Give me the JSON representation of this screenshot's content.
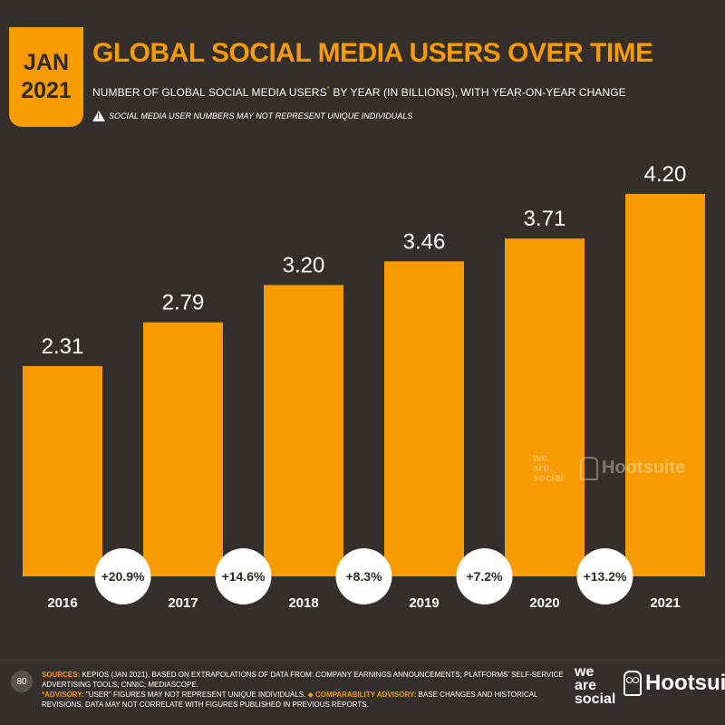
{
  "badge": {
    "month": "JAN",
    "year": "2021"
  },
  "header": {
    "title": "GLOBAL SOCIAL MEDIA USERS OVER TIME",
    "subtitle_main": "NUMBER OF GLOBAL SOCIAL MEDIA USERS",
    "subtitle_marker": "*",
    "subtitle_rest": " BY YEAR (IN BILLIONS), WITH YEAR-ON-YEAR CHANGE",
    "warning": "SOCIAL MEDIA USER NUMBERS MAY NOT REPRESENT UNIQUE INDIVIDUALS",
    "warning_icon": "warning-triangle-icon"
  },
  "colors": {
    "accent": "#f79b00",
    "background": "#342f2b",
    "text": "#ffffff"
  },
  "chart_data": {
    "type": "bar",
    "title": "GLOBAL SOCIAL MEDIA USERS OVER TIME",
    "xlabel": "",
    "ylabel": "",
    "categories": [
      "2016",
      "2017",
      "2018",
      "2019",
      "2020",
      "2021"
    ],
    "values": [
      2.31,
      2.79,
      3.2,
      3.46,
      3.71,
      4.2
    ],
    "value_labels": [
      "2.31",
      "2.79",
      "3.20",
      "3.46",
      "3.71",
      "4.20"
    ],
    "yoy_change": [
      "+20.9%",
      "+14.6%",
      "+8.3%",
      "+7.2%",
      "+13.2%"
    ],
    "ylim": [
      0,
      4.2
    ],
    "grid": false,
    "legend": "none"
  },
  "watermark": {
    "weare": [
      "we",
      "are.",
      "social"
    ],
    "hootsuite": "Hootsuite"
  },
  "footer": {
    "page_number": "80",
    "sources_label": "SOURCES:",
    "sources_text": " KEPIOS (JAN 2021), BASED ON EXTRAPOLATIONS OF DATA FROM: COMPANY EARNINGS ANNOUNCEMENTS; PLATFORMS' SELF-SERVICE ADVERTISING TOOLS; CNNIC; MEDIASCOPE.",
    "advisory_label": "*ADVISORY:",
    "advisory_text": " \"USER\" FIGURES MAY NOT REPRESENT UNIQUE INDIVIDUALS.",
    "comparability_label": "◆ COMPARABILITY ADVISORY:",
    "comparability_text": " BASE CHANGES AND HISTORICAL REVISIONS. DATA MAY NOT CORRELATE WITH FIGURES PUBLISHED IN PREVIOUS REPORTS.",
    "brand_weare": [
      "we",
      "are",
      "social"
    ],
    "brand_hootsuite": "Hootsuite"
  }
}
